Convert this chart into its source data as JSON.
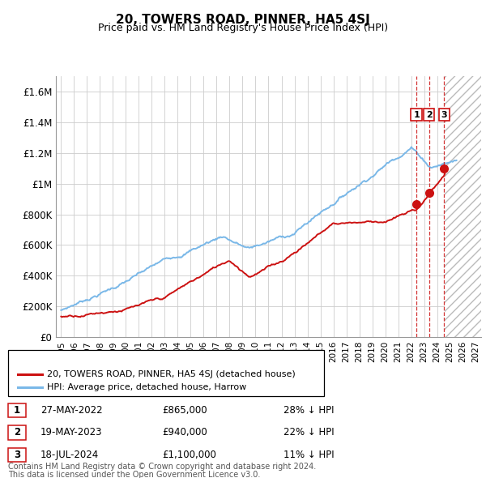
{
  "title": "20, TOWERS ROAD, PINNER, HA5 4SJ",
  "subtitle": "Price paid vs. HM Land Registry's House Price Index (HPI)",
  "ylim": [
    0,
    1700000
  ],
  "yticks": [
    0,
    200000,
    400000,
    600000,
    800000,
    1000000,
    1200000,
    1400000,
    1600000
  ],
  "ytick_labels": [
    "£0",
    "£200K",
    "£400K",
    "£600K",
    "£800K",
    "£1M",
    "£1.2M",
    "£1.4M",
    "£1.6M"
  ],
  "hpi_color": "#7ab8e8",
  "price_color": "#cc1111",
  "vline_color": "#cc1111",
  "grid_color": "#cccccc",
  "xlim_start": 1994.6,
  "xlim_end": 2027.4,
  "transactions": [
    {
      "date": 2022.41,
      "price": 865000,
      "label": "1"
    },
    {
      "date": 2023.38,
      "price": 940000,
      "label": "2"
    },
    {
      "date": 2024.54,
      "price": 1100000,
      "label": "3"
    }
  ],
  "legend_entries": [
    "20, TOWERS ROAD, PINNER, HA5 4SJ (detached house)",
    "HPI: Average price, detached house, Harrow"
  ],
  "table_rows": [
    [
      "1",
      "27-MAY-2022",
      "£865,000",
      "28% ↓ HPI"
    ],
    [
      "2",
      "19-MAY-2023",
      "£940,000",
      "22% ↓ HPI"
    ],
    [
      "3",
      "18-JUL-2024",
      "£1,100,000",
      "11% ↓ HPI"
    ]
  ],
  "footnote1": "Contains HM Land Registry data © Crown copyright and database right 2024.",
  "footnote2": "This data is licensed under the Open Government Licence v3.0."
}
